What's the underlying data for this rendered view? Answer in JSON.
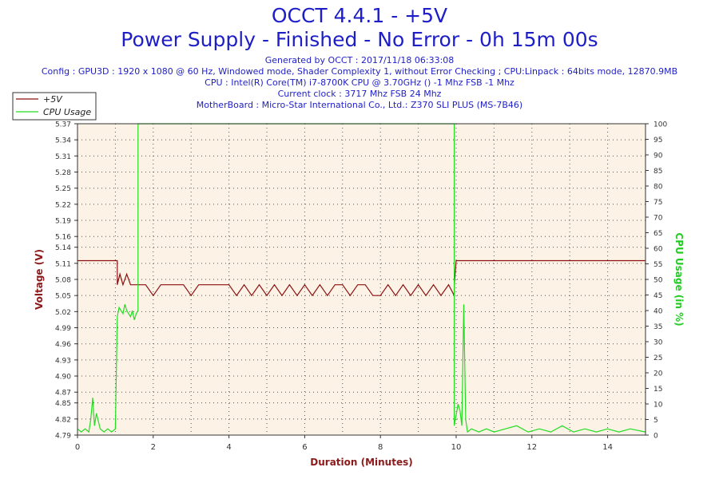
{
  "header": {
    "title": "OCCT 4.4.1 - +5V",
    "subtitle": "Power Supply - Finished - No Error - 0h 15m 00s",
    "generated": "Generated by OCCT : 2017/11/18 06:33:08",
    "config": "Config : GPU3D : 1920 x 1080 @ 60 Hz, Windowed mode, Shader Complexity 1, without Error Checking ; CPU:Linpack : 64bits mode, 12870.9MB",
    "cpu": "CPU : Intel(R) Core(TM) i7-8700K CPU @ 3.70GHz () -1 Mhz FSB -1 Mhz",
    "clock": "Current clock : 3717 Mhz FSB 24 Mhz",
    "motherboard": "MotherBoard : Micro-Star International Co., Ltd.: Z370 SLI PLUS (MS-7B46)"
  },
  "colors": {
    "voltage": "#8b1010",
    "cpu": "#22dd22",
    "background": "#fdf2e6",
    "axis_label_left": "#8b1a1a",
    "axis_label_right": "#22cc22",
    "header_text": "#1e1ec8"
  },
  "chart_data": {
    "type": "line",
    "xlabel": "Duration (Minutes)",
    "ylabel": "Voltage (V)",
    "y2label": "CPU Usage (in %)",
    "xlim": [
      0,
      15
    ],
    "ylim": [
      4.79,
      5.37
    ],
    "y2lim": [
      0,
      100
    ],
    "x_ticks": [
      0,
      2,
      4,
      6,
      8,
      10,
      12,
      14
    ],
    "y_ticks": [
      4.79,
      4.82,
      4.85,
      4.87,
      4.9,
      4.93,
      4.96,
      4.99,
      5.02,
      5.05,
      5.08,
      5.11,
      5.14,
      5.16,
      5.19,
      5.22,
      5.25,
      5.28,
      5.31,
      5.34,
      5.37
    ],
    "y2_ticks": [
      0,
      5,
      10,
      15,
      20,
      25,
      30,
      35,
      40,
      45,
      50,
      55,
      60,
      65,
      70,
      75,
      80,
      85,
      90,
      95,
      100
    ],
    "grid": true,
    "legend": "top-left",
    "series": [
      {
        "name": "+5V",
        "axis": "left",
        "x": [
          0,
          1.05,
          1.05,
          1.12,
          1.2,
          1.3,
          1.4,
          1.5,
          1.6,
          1.8,
          2.0,
          2.2,
          2.4,
          2.6,
          2.8,
          3.0,
          3.2,
          3.4,
          3.6,
          3.8,
          4.0,
          4.2,
          4.4,
          4.6,
          4.8,
          5.0,
          5.2,
          5.4,
          5.6,
          5.8,
          6.0,
          6.2,
          6.4,
          6.6,
          6.8,
          7.0,
          7.2,
          7.4,
          7.6,
          7.8,
          8.0,
          8.2,
          8.4,
          8.6,
          8.8,
          9.0,
          9.2,
          9.4,
          9.6,
          9.8,
          9.95,
          9.95,
          10.0,
          15
        ],
        "y": [
          5.115,
          5.115,
          5.07,
          5.09,
          5.07,
          5.09,
          5.07,
          5.07,
          5.07,
          5.07,
          5.05,
          5.07,
          5.07,
          5.07,
          5.07,
          5.05,
          5.07,
          5.07,
          5.07,
          5.07,
          5.07,
          5.05,
          5.07,
          5.05,
          5.07,
          5.05,
          5.07,
          5.05,
          5.07,
          5.05,
          5.07,
          5.05,
          5.07,
          5.05,
          5.07,
          5.07,
          5.05,
          5.07,
          5.07,
          5.05,
          5.05,
          5.07,
          5.05,
          5.07,
          5.05,
          5.07,
          5.05,
          5.07,
          5.05,
          5.07,
          5.05,
          5.07,
          5.115,
          5.115
        ]
      },
      {
        "name": "CPU Usage",
        "axis": "right",
        "x": [
          0,
          0.1,
          0.2,
          0.3,
          0.35,
          0.4,
          0.45,
          0.5,
          0.6,
          0.7,
          0.8,
          0.9,
          1.0,
          1.05,
          1.1,
          1.2,
          1.25,
          1.3,
          1.4,
          1.45,
          1.5,
          1.55,
          1.6,
          1.6,
          9.95,
          9.95,
          10.05,
          10.1,
          10.15,
          10.2,
          10.25,
          10.3,
          10.4,
          10.6,
          10.8,
          11.0,
          11.3,
          11.6,
          11.9,
          12.2,
          12.5,
          12.8,
          13.1,
          13.4,
          13.7,
          14.0,
          14.3,
          14.6,
          15
        ],
        "y": [
          2,
          1,
          2,
          1,
          5,
          12,
          3,
          7,
          2,
          1,
          2,
          1,
          2,
          38,
          41,
          39,
          42,
          40,
          38,
          40,
          37,
          39,
          40,
          100,
          100,
          3,
          10,
          8,
          3,
          42,
          5,
          1,
          2,
          1,
          2,
          1,
          2,
          3,
          1,
          2,
          1,
          3,
          1,
          2,
          1,
          2,
          1,
          2,
          1
        ]
      }
    ]
  }
}
